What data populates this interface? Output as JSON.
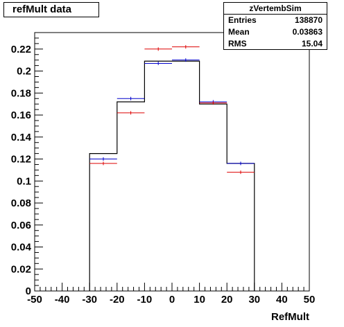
{
  "title": "refMult  data",
  "stats": {
    "name": "zVertembSim",
    "rows": [
      {
        "key": "Entries",
        "value": "138870"
      },
      {
        "key": "Mean",
        "value": "0.03863"
      },
      {
        "key": "RMS",
        "value": "15.04"
      }
    ]
  },
  "chart_data": {
    "type": "line",
    "xlabel": "RefMult",
    "ylabel": "",
    "xlim": [
      -50,
      50
    ],
    "ylim": [
      0,
      0.235
    ],
    "x_ticks": [
      -50,
      -40,
      -30,
      -20,
      -10,
      0,
      10,
      20,
      30,
      40,
      50
    ],
    "y_ticks": [
      0,
      0.02,
      0.04,
      0.06,
      0.08,
      0.1,
      0.12,
      0.14,
      0.16,
      0.18,
      0.2,
      0.22
    ],
    "bin_edges": [
      -30,
      -20,
      -10,
      0,
      10,
      20,
      30
    ],
    "series": [
      {
        "style": "histogram",
        "color": "#000000",
        "values": [
          0.125,
          0.172,
          0.209,
          0.209,
          0.17,
          0.116
        ]
      },
      {
        "style": "points",
        "color": "#0000cc",
        "x": [
          -25,
          -15,
          -5,
          5,
          15,
          25
        ],
        "values": [
          0.12,
          0.175,
          0.207,
          0.21,
          0.172,
          0.116
        ]
      },
      {
        "style": "points",
        "color": "#dd0000",
        "x": [
          -25,
          -15,
          -5,
          5,
          15,
          25
        ],
        "values": [
          0.116,
          0.162,
          0.22,
          0.222,
          0.171,
          0.108
        ]
      }
    ]
  }
}
